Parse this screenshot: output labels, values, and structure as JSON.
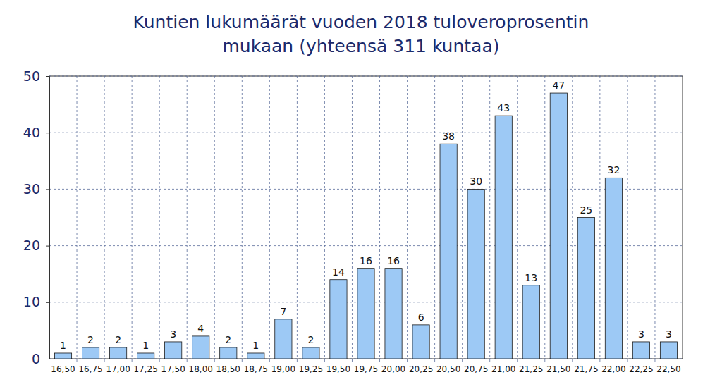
{
  "chart_data": {
    "type": "bar",
    "title": "Kuntien lukumäärät vuoden 2018 tuloveroprosentin mukaan (yhteensä 311 kuntaa)",
    "categories": [
      "16,50",
      "16,75",
      "17,00",
      "17,25",
      "17,50",
      "18,00",
      "18,50",
      "18,75",
      "19,00",
      "19,25",
      "19,50",
      "19,75",
      "20,00",
      "20,25",
      "20,50",
      "20,75",
      "21,00",
      "21,25",
      "21,50",
      "21,75",
      "22,00",
      "22,25",
      "22,50"
    ],
    "values": [
      1,
      2,
      2,
      1,
      3,
      4,
      2,
      1,
      7,
      2,
      14,
      16,
      16,
      6,
      38,
      30,
      43,
      13,
      47,
      25,
      32,
      3,
      3
    ],
    "color": "#9dc9f5",
    "ylim": [
      0,
      50
    ],
    "yticks": [
      0,
      10,
      20,
      30,
      40,
      50
    ],
    "grid": true,
    "data_labels": true
  }
}
